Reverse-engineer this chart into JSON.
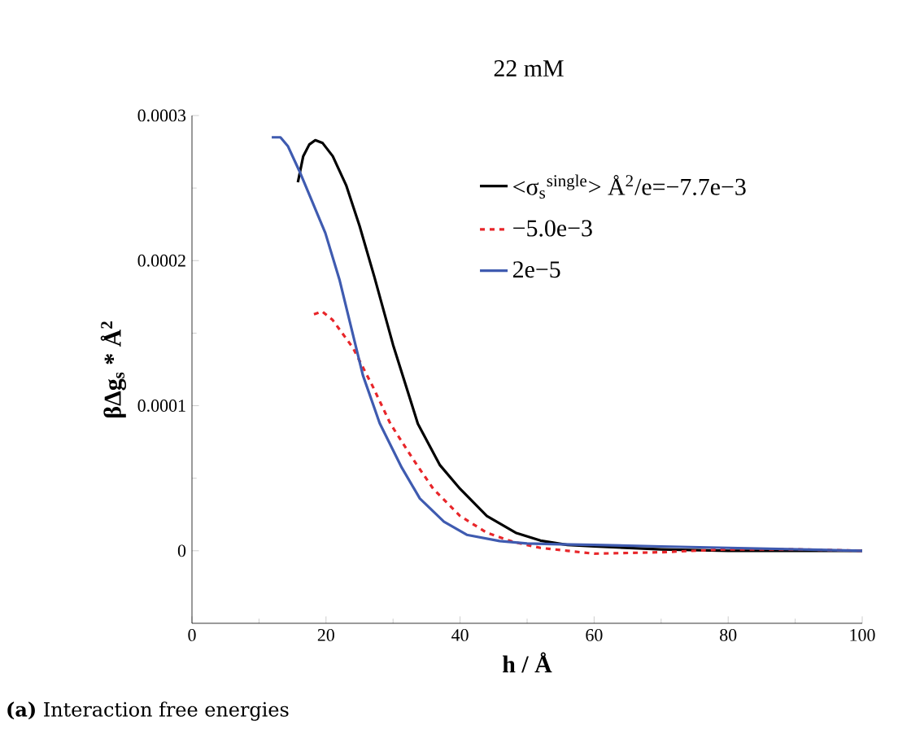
{
  "chart_data": {
    "type": "line",
    "title": "22 mM",
    "xlabel": "h / Å",
    "ylabel": "βΔg$_{s}$ * Å$^{2}$",
    "annotations": [
      "**(a)** Interaction free energies"
    ],
    "xlim": [
      0,
      100
    ],
    "ylim": [
      -5e-05,
      0.0003
    ],
    "xticks": [
      0,
      20,
      40,
      60,
      80,
      100
    ],
    "yticks": [
      0,
      {
        "value": 0.0001,
        "label": "0.0001"
      },
      {
        "value": 0.0002,
        "label": "0.0002"
      },
      {
        "value": 0.0003,
        "label": "0.0003"
      }
    ],
    "legend": "top right",
    "grid": false,
    "series": [
      {
        "name": "<σ$_{s}$$^{single}$> Å$^{2}$/e=−7.7e−3",
        "color": "#000000",
        "line_style": "solid",
        "x": [
          15.8,
          16.6,
          17.5,
          18.4,
          19.5,
          21,
          23,
          25,
          27.2,
          30,
          33.7,
          37,
          40,
          44,
          48.3,
          52,
          56,
          60,
          70,
          80,
          90,
          100
        ],
        "values": [
          0.000254,
          0.000272,
          0.00028,
          0.000283,
          0.000281,
          0.000272,
          0.000252,
          0.000224,
          0.000189,
          0.000142,
          8.76e-05,
          5.9e-05,
          4.27e-05,
          2.4e-05,
          1.24e-05,
          7e-06,
          4e-06,
          3e-06,
          1e-06,
          0,
          0,
          0
        ]
      },
      {
        "name": "−5.0e−3",
        "color": "#e8262a",
        "line_style": "dashed",
        "x": [
          18.2,
          19.4,
          21,
          24,
          27,
          29.6,
          33,
          36,
          40,
          44,
          48,
          52,
          56,
          60,
          70,
          80,
          90,
          100
        ],
        "values": [
          0.000163,
          0.000165,
          0.000159,
          0.00014,
          0.000113,
          8.76e-05,
          6.3e-05,
          4.27e-05,
          2.4e-05,
          1.24e-05,
          6e-06,
          2e-06,
          0,
          -2e-06,
          -1e-06,
          1e-06,
          1e-06,
          0
        ]
      },
      {
        "name": "2e−5",
        "color": "#3f5bb0",
        "line_style": "solid",
        "x": [
          11.9,
          13.2,
          14.3,
          16,
          18,
          19.9,
          22,
          25.5,
          28,
          31.3,
          34,
          37.6,
          41,
          45.9,
          50,
          55,
          60,
          70,
          80,
          90,
          100
        ],
        "values": [
          0.000285,
          0.000285,
          0.000279,
          0.000262,
          0.00024,
          0.000219,
          0.000187,
          0.000121,
          8.8e-05,
          5.73e-05,
          3.6e-05,
          2e-05,
          1.1e-05,
          6.7e-06,
          5e-06,
          4.5e-06,
          4e-06,
          3e-06,
          2e-06,
          1e-06,
          0
        ]
      }
    ]
  }
}
